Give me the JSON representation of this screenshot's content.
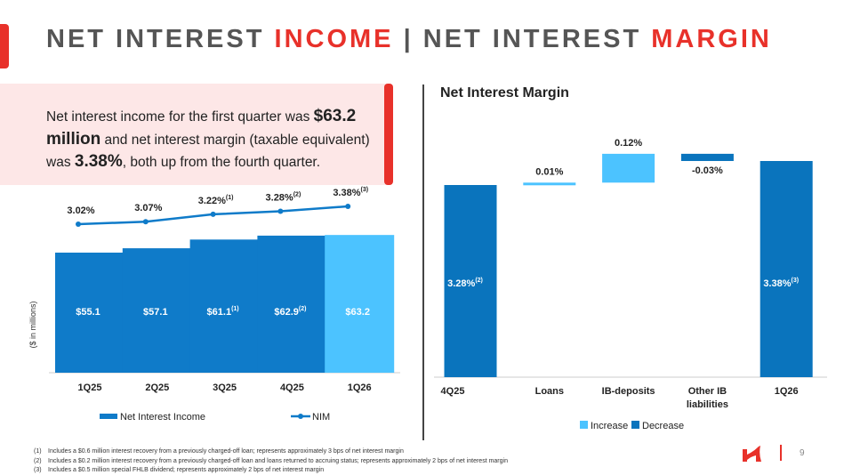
{
  "title": {
    "part1": "NET INTEREST ",
    "part2": "INCOME",
    "sep": " | ",
    "part3": "NET INTEREST ",
    "part4": "MARGIN"
  },
  "callout": {
    "t1": "Net interest income for the first quarter was ",
    "b1": "$63.2 million",
    "t2": " and net interest margin (taxable equivalent) was ",
    "b2": "3.38%",
    "t3": ", both up from the fourth quarter."
  },
  "colors": {
    "red": "#e8312a",
    "blue": "#0f7bc9",
    "dark_blue": "#0a74bd",
    "light_blue": "#4cc3ff"
  },
  "chart_data": [
    {
      "type": "bar",
      "title": "",
      "ylabel": "($ in millions)",
      "categories": [
        "1Q25",
        "2Q25",
        "3Q25",
        "4Q25",
        "1Q26"
      ],
      "series": [
        {
          "name": "Net Interest Income",
          "values": [
            55.1,
            57.1,
            61.1,
            62.9,
            63.2
          ],
          "labels": [
            "$55.1",
            "$57.1",
            "$61.1",
            "$62.9",
            "$63.2"
          ],
          "footnotes": [
            "",
            "",
            "(1)",
            "(2)",
            ""
          ]
        },
        {
          "name": "NIM",
          "type": "line",
          "values": [
            3.02,
            3.07,
            3.22,
            3.28,
            3.38
          ],
          "labels": [
            "3.02%",
            "3.07%",
            "3.22%",
            "3.28%",
            "3.38%"
          ],
          "footnotes": [
            "",
            "",
            "(1)",
            "(2)",
            "(3)"
          ]
        }
      ],
      "legend": [
        "Net Interest Income",
        "NIM"
      ],
      "legend_position": "bottom"
    },
    {
      "type": "waterfall",
      "title": "Net Interest Margin",
      "categories": [
        "4Q25",
        "Loans",
        "IB-deposits",
        "Other IB liabilities",
        "1Q26"
      ],
      "values": [
        3.28,
        0.01,
        0.12,
        -0.03,
        3.38
      ],
      "labels": [
        "3.28%",
        "0.01%",
        "0.12%",
        "-0.03%",
        "3.38%"
      ],
      "footnotes": [
        "(2)",
        "",
        "",
        "",
        "(3)"
      ],
      "kinds": [
        "total",
        "increase",
        "increase",
        "decrease",
        "total"
      ],
      "legend": [
        "Increase",
        "Decrease"
      ],
      "legend_position": "bottom",
      "ylim": [
        2.48,
        3.45
      ]
    }
  ],
  "footnotes": [
    {
      "num": "(1)",
      "text": "Includes a $0.6 million interest recovery from a previously charged-off loan; represents approximately 3 bps of net interest margin"
    },
    {
      "num": "(2)",
      "text": "Includes a $0.2 million interest recovery from a previously charged-off loan and loans returned to accruing status; represents approximately 2 bps of net interest margin"
    },
    {
      "num": "(3)",
      "text": "Includes a $0.5 million special FHLB dividend; represents approximately 2 bps of net interest margin"
    }
  ],
  "page_number": "9"
}
